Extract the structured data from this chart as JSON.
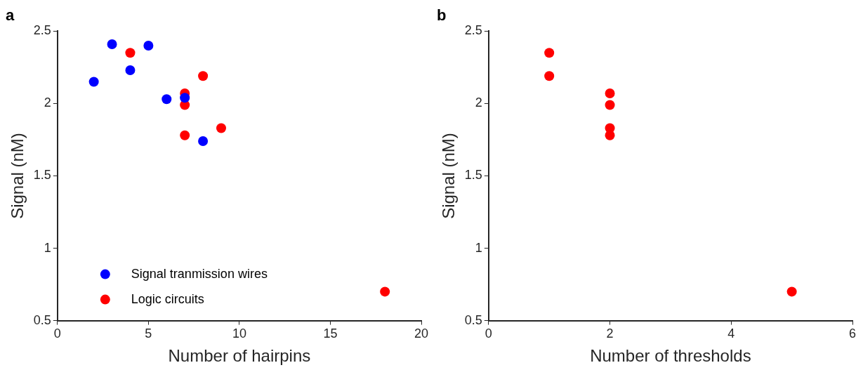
{
  "chart_data": [
    {
      "type": "scatter",
      "title": "a",
      "xlabel": "Number of hairpins",
      "ylabel": "Signal (nM)",
      "xlim": [
        0,
        20
      ],
      "xticks": [
        0,
        5,
        10,
        15,
        20
      ],
      "ylim": [
        0.5,
        2.5
      ],
      "yticks": [
        0.5,
        1,
        1.5,
        2,
        2.5
      ],
      "grid": false,
      "legend": "bottom left",
      "marker": "circle",
      "series": [
        {
          "name": "Signal tranmission wires",
          "color": "#0000ff",
          "x": [
            2,
            3,
            4,
            5,
            6,
            7,
            8
          ],
          "values": [
            2.15,
            2.41,
            2.23,
            2.4,
            2.03,
            2.04,
            1.74
          ]
        },
        {
          "name": "Logic circuits",
          "color": "#ff0000",
          "x": [
            4,
            7,
            7,
            7,
            8,
            9,
            18
          ],
          "values": [
            2.35,
            2.07,
            1.99,
            1.78,
            2.19,
            1.83,
            0.7
          ]
        }
      ]
    },
    {
      "type": "scatter",
      "title": "b",
      "xlabel": "Number of thresholds",
      "ylabel": "Signal (nM)",
      "xlim": [
        0,
        6
      ],
      "xticks": [
        0,
        2,
        4,
        6
      ],
      "ylim": [
        0.5,
        2.5
      ],
      "yticks": [
        0.5,
        1,
        1.5,
        2,
        2.5
      ],
      "grid": false,
      "marker": "circle",
      "series": [
        {
          "color": "#ff0000",
          "x": [
            1,
            1,
            2,
            2,
            2,
            2,
            5
          ],
          "values": [
            2.35,
            2.19,
            2.07,
            1.99,
            1.83,
            1.78,
            0.7
          ]
        }
      ]
    }
  ]
}
